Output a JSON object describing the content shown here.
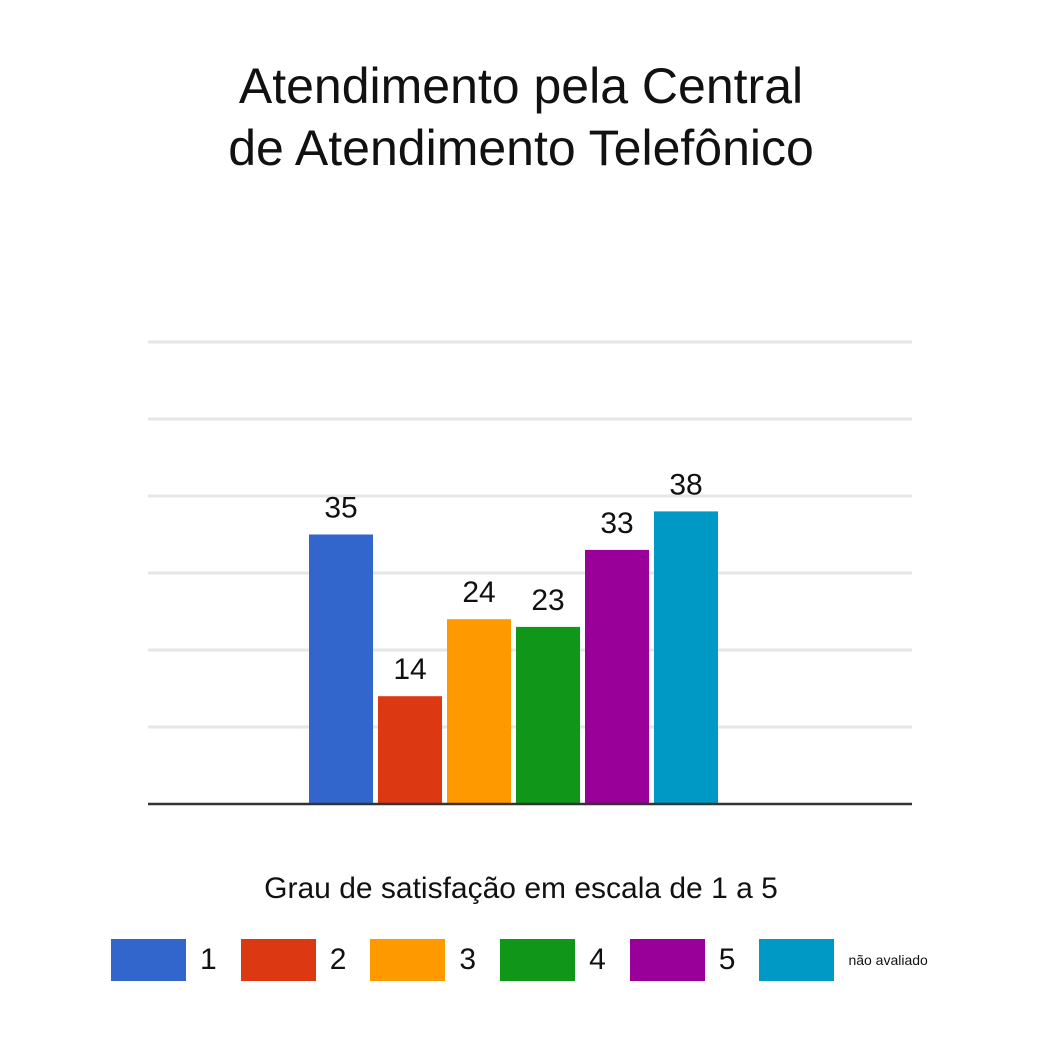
{
  "title_lines": [
    "Atendimento pela Central",
    "de Atendimento Telefônico"
  ],
  "subtitle": "Grau de satisfação em escala de 1 a 5",
  "chart_data": {
    "type": "bar",
    "title": "Atendimento pela Central de Atendimento Telefônico",
    "xlabel": "Grau de satisfação em escala de 1 a 5",
    "ylabel": "",
    "categories": [
      "1",
      "2",
      "3",
      "4",
      "5",
      "não avaliado"
    ],
    "values": [
      35,
      14,
      24,
      23,
      33,
      38
    ],
    "colors": [
      "#3366cc",
      "#dc3912",
      "#ff9900",
      "#109618",
      "#990099",
      "#0099c6"
    ],
    "data_labels": [
      "35",
      "14",
      "24",
      "23",
      "33",
      "38"
    ],
    "ylim": [
      0,
      60
    ],
    "grid": true,
    "legend_position": "bottom"
  },
  "legend": [
    {
      "label": "1",
      "color": "#3366cc"
    },
    {
      "label": "2",
      "color": "#dc3912"
    },
    {
      "label": "3",
      "color": "#ff9900"
    },
    {
      "label": "4",
      "color": "#109618"
    },
    {
      "label": "5",
      "color": "#990099"
    },
    {
      "label": "não avaliado",
      "color": "#0099c6"
    }
  ]
}
